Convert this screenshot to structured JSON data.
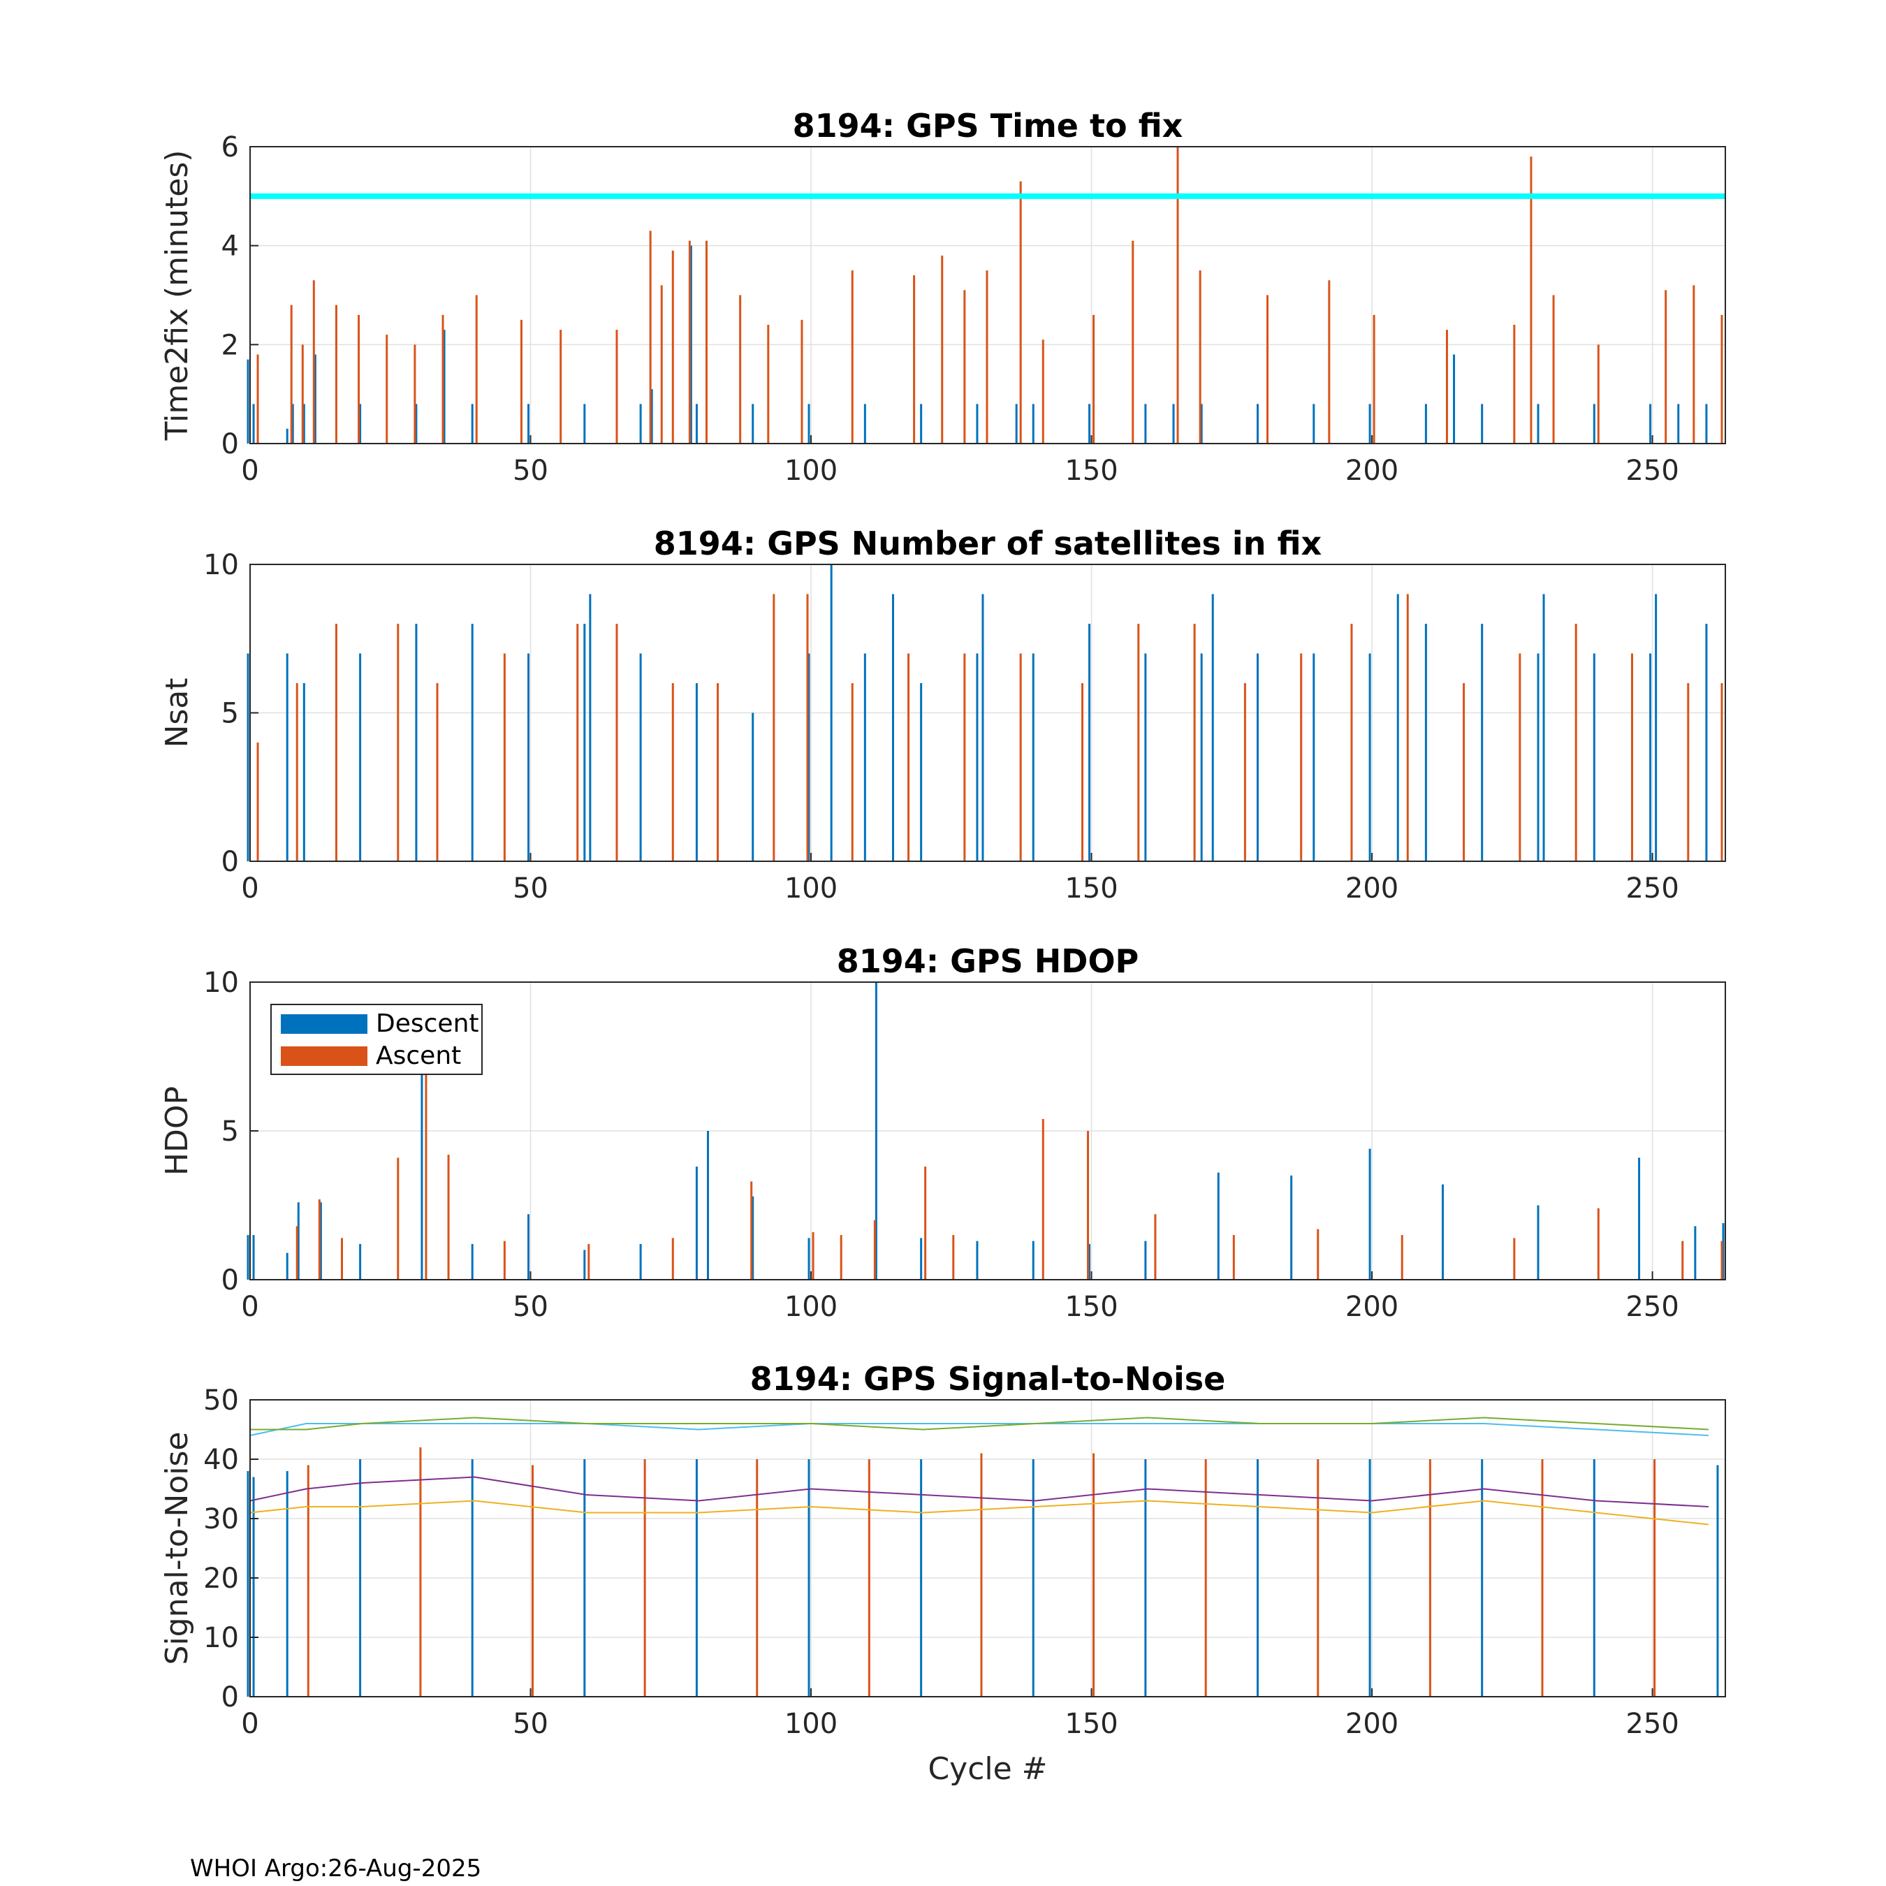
{
  "footer": "WHOI Argo:26-Aug-2025",
  "colors": {
    "descent": "#0072BD",
    "ascent": "#D95319",
    "threshold": "#00FFFF",
    "snr_lines": [
      "#4DBEEE",
      "#77AC30",
      "#7E2F8E",
      "#EDB120"
    ],
    "grid": "#e0e0e0",
    "axes": "#262626"
  },
  "chart_data": [
    {
      "type": "bar",
      "title": "8194: GPS Time to fix",
      "xlabel": "",
      "ylabel": "Time2fix (minutes)",
      "xlim": [
        0,
        263
      ],
      "ylim": [
        0,
        6
      ],
      "xticks": [
        0,
        50,
        100,
        150,
        200,
        250
      ],
      "yticks": [
        0,
        2,
        4,
        6
      ],
      "grid": true,
      "threshold_line": 5,
      "series": [
        {
          "name": "Descent",
          "x": [
            0,
            1,
            7,
            8,
            10,
            12,
            20,
            30,
            35,
            40,
            50,
            60,
            70,
            72,
            79,
            80,
            90,
            100,
            110,
            120,
            130,
            137,
            140,
            150,
            160,
            165,
            170,
            180,
            190,
            200,
            210,
            215,
            220,
            230,
            240,
            250,
            255,
            260
          ],
          "values": [
            1.7,
            0.8,
            0.3,
            0.8,
            0.8,
            1.8,
            0.8,
            0.8,
            2.3,
            0.8,
            0.8,
            0.8,
            0.8,
            1.1,
            4.0,
            0.8,
            0.8,
            0.8,
            0.8,
            0.8,
            0.8,
            0.8,
            0.8,
            0.8,
            0.8,
            0.8,
            0.8,
            0.8,
            0.8,
            0.8,
            0.8,
            1.8,
            0.8,
            0.8,
            0.8,
            0.8,
            0.8,
            0.8
          ]
        },
        {
          "name": "Ascent",
          "x": [
            1,
            7,
            9,
            11,
            15,
            19,
            24,
            29,
            34,
            40,
            48,
            55,
            65,
            71,
            73,
            75,
            78,
            81,
            87,
            92,
            98,
            107,
            118,
            123,
            127,
            131,
            137,
            141,
            150,
            157,
            165,
            169,
            181,
            192,
            200,
            213,
            225,
            228,
            232,
            240,
            252,
            257,
            262
          ],
          "values": [
            1.8,
            2.8,
            2.0,
            3.3,
            2.8,
            2.6,
            2.2,
            2.0,
            2.6,
            3.0,
            2.5,
            2.3,
            2.3,
            4.3,
            3.2,
            3.9,
            4.1,
            4.1,
            3.0,
            2.4,
            2.5,
            3.5,
            3.4,
            3.8,
            3.1,
            3.5,
            5.3,
            2.1,
            2.6,
            4.1,
            6.0,
            3.5,
            3.0,
            3.3,
            2.6,
            2.3,
            2.4,
            5.8,
            3.0,
            2.0,
            3.1,
            3.2,
            2.6
          ]
        }
      ]
    },
    {
      "type": "bar",
      "title": "8194: GPS Number of satellites in fix",
      "xlabel": "",
      "ylabel": "Nsat",
      "xlim": [
        0,
        263
      ],
      "ylim": [
        0,
        10
      ],
      "xticks": [
        0,
        50,
        100,
        150,
        200,
        250
      ],
      "yticks": [
        0,
        5,
        10
      ],
      "grid": true,
      "series": [
        {
          "name": "Descent",
          "x": [
            0,
            7,
            10,
            20,
            30,
            40,
            50,
            60,
            61,
            70,
            80,
            90,
            100,
            104,
            110,
            115,
            120,
            130,
            131,
            140,
            150,
            160,
            170,
            172,
            180,
            190,
            200,
            205,
            210,
            220,
            230,
            231,
            240,
            250,
            251,
            260
          ],
          "values": [
            7,
            7,
            6,
            7,
            8,
            8,
            7,
            8,
            9,
            7,
            6,
            5,
            7,
            10,
            7,
            9,
            6,
            7,
            9,
            7,
            8,
            7,
            7,
            9,
            7,
            7,
            7,
            9,
            8,
            8,
            7,
            9,
            7,
            7,
            9,
            8
          ]
        },
        {
          "name": "Ascent",
          "x": [
            1,
            8,
            15,
            26,
            33,
            45,
            58,
            65,
            75,
            83,
            93,
            99,
            107,
            117,
            127,
            137,
            148,
            158,
            168,
            177,
            187,
            196,
            206,
            216,
            226,
            236,
            246,
            256,
            262
          ],
          "values": [
            4,
            6,
            8,
            8,
            6,
            7,
            8,
            8,
            6,
            6,
            9,
            9,
            6,
            7,
            7,
            7,
            6,
            8,
            8,
            6,
            7,
            8,
            9,
            6,
            7,
            8,
            7,
            6,
            6
          ]
        }
      ]
    },
    {
      "type": "bar",
      "title": "8194: GPS HDOP",
      "xlabel": "",
      "ylabel": "HDOP",
      "xlim": [
        0,
        263
      ],
      "ylim": [
        0,
        10
      ],
      "xticks": [
        0,
        50,
        100,
        150,
        200,
        250
      ],
      "yticks": [
        0,
        5,
        10
      ],
      "grid": true,
      "legend": {
        "position": "top-left",
        "entries": [
          "Descent",
          "Ascent"
        ]
      },
      "series": [
        {
          "name": "Descent",
          "x": [
            0,
            1,
            7,
            9,
            13,
            20,
            31,
            40,
            50,
            60,
            70,
            80,
            82,
            90,
            100,
            112,
            120,
            130,
            140,
            150,
            160,
            173,
            186,
            200,
            213,
            230,
            248,
            258,
            263
          ],
          "values": [
            1.5,
            1.5,
            0.9,
            2.6,
            2.6,
            1.2,
            7.8,
            1.2,
            2.2,
            1.0,
            1.2,
            3.8,
            5.0,
            2.8,
            1.4,
            10.0,
            1.4,
            1.3,
            1.3,
            1.2,
            1.3,
            3.6,
            3.5,
            4.4,
            3.2,
            2.5,
            4.1,
            1.8,
            1.9
          ]
        },
        {
          "name": "Ascent",
          "x": [
            8,
            12,
            16,
            26,
            31,
            35,
            45,
            60,
            75,
            89,
            100,
            105,
            111,
            120,
            125,
            141,
            149,
            161,
            175,
            190,
            205,
            225,
            240,
            255,
            262
          ],
          "values": [
            1.8,
            2.7,
            1.4,
            4.1,
            7.0,
            4.2,
            1.3,
            1.2,
            1.4,
            3.3,
            1.6,
            1.5,
            2.0,
            3.8,
            1.5,
            5.4,
            5.0,
            2.2,
            1.5,
            1.7,
            1.5,
            1.4,
            2.4,
            1.3,
            1.3
          ]
        }
      ]
    },
    {
      "type": "bar",
      "title": "8194: GPS Signal-to-Noise",
      "xlabel": "Cycle #",
      "ylabel": "Signal-to-Noise",
      "xlim": [
        0,
        263
      ],
      "ylim": [
        0,
        50
      ],
      "xticks": [
        0,
        50,
        100,
        150,
        200,
        250
      ],
      "yticks": [
        0,
        10,
        20,
        30,
        40,
        50
      ],
      "grid": true,
      "bar_series": [
        {
          "name": "Descent",
          "x": [
            0,
            1,
            7,
            20,
            40,
            60,
            80,
            100,
            120,
            140,
            160,
            180,
            200,
            220,
            240,
            262
          ],
          "values": [
            38,
            37,
            38,
            40,
            40,
            40,
            40,
            40,
            40,
            40,
            40,
            40,
            40,
            40,
            40,
            39
          ]
        },
        {
          "name": "Ascent",
          "x": [
            10,
            30,
            50,
            70,
            90,
            110,
            130,
            150,
            170,
            190,
            210,
            230,
            250
          ],
          "values": [
            39,
            42,
            39,
            40,
            40,
            40,
            41,
            41,
            40,
            40,
            40,
            40,
            40
          ]
        }
      ],
      "line_series": [
        {
          "name": "snr-line-1",
          "x": [
            0,
            10,
            20,
            40,
            60,
            80,
            100,
            120,
            140,
            160,
            180,
            200,
            220,
            240,
            260
          ],
          "values": [
            44,
            46,
            46,
            46,
            46,
            45,
            46,
            46,
            46,
            46,
            46,
            46,
            46,
            45,
            44
          ]
        },
        {
          "name": "snr-line-2",
          "x": [
            0,
            10,
            20,
            40,
            60,
            80,
            100,
            120,
            140,
            160,
            180,
            200,
            220,
            240,
            260
          ],
          "values": [
            45,
            45,
            46,
            47,
            46,
            46,
            46,
            45,
            46,
            47,
            46,
            46,
            47,
            46,
            45
          ]
        },
        {
          "name": "snr-line-3",
          "x": [
            0,
            10,
            20,
            40,
            60,
            80,
            100,
            120,
            140,
            160,
            180,
            200,
            220,
            240,
            260
          ],
          "values": [
            33,
            35,
            36,
            37,
            34,
            33,
            35,
            34,
            33,
            35,
            34,
            33,
            35,
            33,
            32
          ]
        },
        {
          "name": "snr-line-4",
          "x": [
            0,
            10,
            20,
            40,
            60,
            80,
            100,
            120,
            140,
            160,
            180,
            200,
            220,
            240,
            260
          ],
          "values": [
            31,
            32,
            32,
            33,
            31,
            31,
            32,
            31,
            32,
            33,
            32,
            31,
            33,
            31,
            29
          ]
        }
      ]
    }
  ]
}
